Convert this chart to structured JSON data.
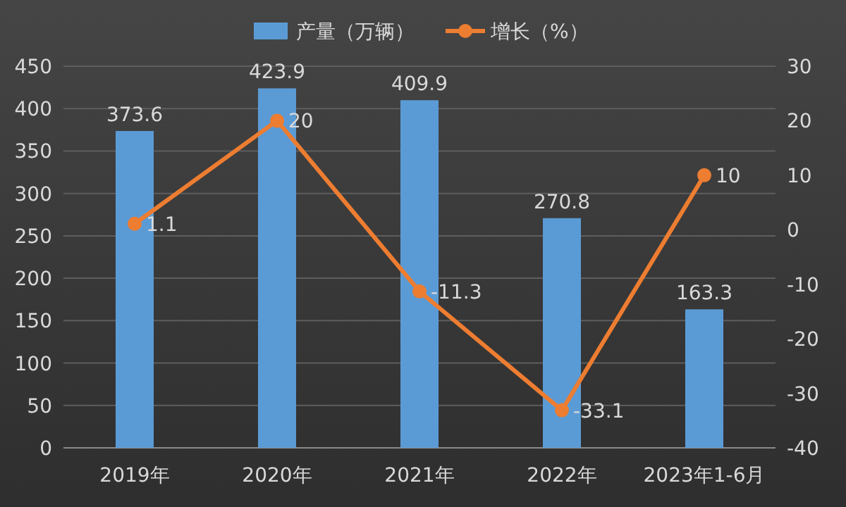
{
  "chart_data": {
    "type": "bar",
    "categories": [
      "2019年",
      "2020年",
      "2021年",
      "2022年",
      "2023年1-6月"
    ],
    "series": [
      {
        "name": "产量（万辆）",
        "color": "#5b9bd5",
        "values": [
          373.6,
          423.9,
          409.9,
          270.8,
          163.3
        ]
      },
      {
        "name": "增长（%）",
        "type": "line",
        "axis": "y2",
        "color": "#ed7d31",
        "values": [
          1.1,
          20,
          -11.3,
          -33.1,
          10
        ]
      }
    ],
    "ylim": [
      0,
      450
    ],
    "yticks": [
      0,
      50,
      100,
      150,
      200,
      250,
      300,
      350,
      400,
      450
    ],
    "y2lim": [
      -40,
      30
    ],
    "y2ticks": [
      -40,
      -30,
      -20,
      -10,
      0,
      10,
      20,
      30
    ],
    "grid": "y",
    "legend": "top",
    "marker": "circle",
    "data_labels": true
  }
}
